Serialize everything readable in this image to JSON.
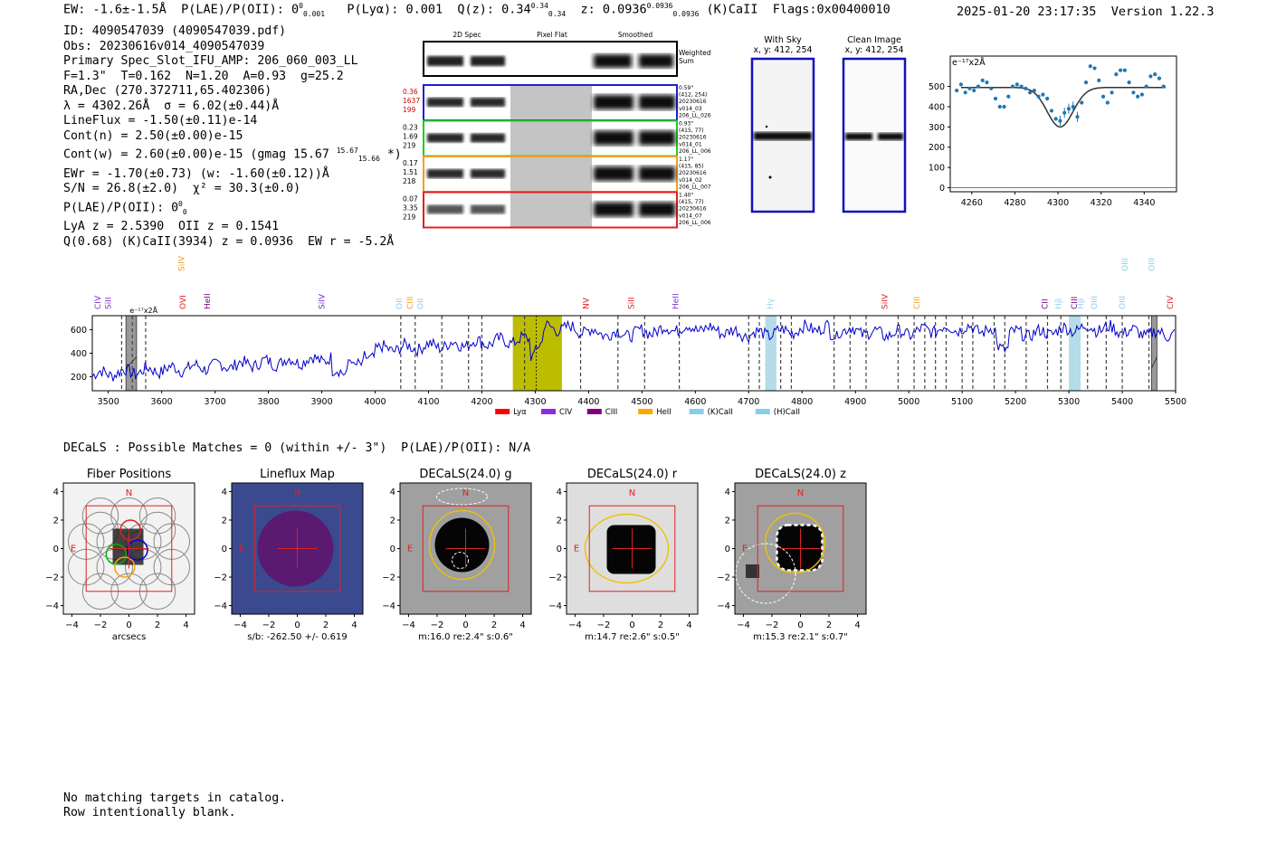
{
  "header": {
    "ew": "EW: -1.6±-1.5Å",
    "plae_label": "P(LAE)/P(OII): 0",
    "plae_sup": "0",
    "plae_sub": "0.001",
    "plya": "P(Lyα): 0.001",
    "qz_label": "Q(z): 0.34",
    "qz_sup": "0.34",
    "qz_sub": "0.34",
    "z_label": "z: 0.0936",
    "z_sup": "0.0936",
    "z_sub": "0.0936",
    "line_id": "(K)CaII",
    "flags": "Flags:0x00400010",
    "datetime": "2025-01-20 23:17:35",
    "version": "Version 1.22.3"
  },
  "info": {
    "id": "ID: 4090547039 (4090547039.pdf)",
    "obs": "Obs: 20230616v014_4090547039",
    "primary": "Primary Spec_Slot_IFU_AMP: 206_060_003_LL",
    "fit": "F=1.3\"  T=0.162  N=1.20  A=0.93  g=25.2",
    "radec": "RA,Dec (270.372711,65.402306)",
    "lambda": "λ = 4302.26Å  σ = 6.02(±0.44)Å",
    "lineflux": "LineFlux = -1.50(±0.11)e-14",
    "contn": "Cont(n) = 2.50(±0.00)e-15",
    "contw": "Cont(w) = 2.60(±0.00)e-15 (gmag 15.67",
    "gmag_sup": "15.67",
    "gmag_sub": "15.66",
    "contw_end": " *)",
    "ewr": "EWr = -1.70(±0.73) (w: -1.60(±0.12))Å",
    "sn": "S/N = 26.8(±2.0)  χ² = 30.3(±0.0)",
    "plae": "P(LAE)/P(OII): 0",
    "plae_sup": "0",
    "plae_sub": "0",
    "lya": "LyA z = 2.5390  OII z = 0.1541",
    "q": "Q(0.68) (K)CaII(3934) z = 0.0936  EW r = -5.2Å"
  },
  "cutouts": {
    "col_2d": "2D Spec",
    "col_flat": "Pixel Flat",
    "col_smooth": "Smoothed",
    "weighted": "Weighted",
    "sum": "Sum",
    "rows": [
      {
        "left": [
          "0.36",
          "1637",
          "199"
        ],
        "right": [
          "0.59\"",
          "(412, 254)",
          "20230616",
          "v014_03",
          "206_LL_026"
        ],
        "color": "#1f1fd0",
        "lcolor": "#d00000"
      },
      {
        "left": [
          "0.23",
          "1.69",
          "219"
        ],
        "right": [
          "0.93\"",
          "(415, 77)",
          "20230616",
          "v014_01",
          "206_LL_006"
        ],
        "color": "#22cc22",
        "lcolor": "#000000"
      },
      {
        "left": [
          "0.17",
          "1.51",
          "218"
        ],
        "right": [
          "1.17\"",
          "(415, 85)",
          "20230616",
          "v014_02",
          "206_LL_007"
        ],
        "color": "#f0a020",
        "lcolor": "#000000"
      },
      {
        "left": [
          "0.07",
          "3.35",
          "219"
        ],
        "right": [
          "1.40\"",
          "(415, 77)",
          "20230616",
          "v014_07",
          "206_LL_006"
        ],
        "color": "#e02020",
        "lcolor": "#000000"
      }
    ],
    "with_sky": "With Sky",
    "with_sky_xy": "x, y: 412, 254",
    "clean": "Clean Image",
    "clean_xy": "x, y: 412, 254"
  },
  "zoom_chart": {
    "type": "scatter",
    "ylabel": "e⁻¹⁷x2Å",
    "xlim": [
      4250,
      4355
    ],
    "ylim": [
      -20,
      650
    ],
    "xticks": [
      4260,
      4280,
      4300,
      4320,
      4340
    ],
    "yticks": [
      0,
      100,
      200,
      300,
      400,
      500
    ],
    "points_x": [
      4253,
      4255,
      4257,
      4259,
      4261,
      4263,
      4265,
      4267,
      4269,
      4271,
      4273,
      4275,
      4277,
      4279,
      4281,
      4283,
      4285,
      4287,
      4289,
      4291,
      4293,
      4295,
      4297,
      4299,
      4301,
      4303,
      4305,
      4307,
      4309,
      4311,
      4313,
      4315,
      4317,
      4319,
      4321,
      4323,
      4325,
      4327,
      4329,
      4331,
      4333,
      4335,
      4337,
      4339,
      4341,
      4343,
      4345,
      4347,
      4349
    ],
    "points_y": [
      480,
      510,
      470,
      490,
      480,
      500,
      530,
      520,
      490,
      440,
      400,
      400,
      450,
      500,
      510,
      500,
      490,
      470,
      480,
      450,
      460,
      440,
      380,
      340,
      330,
      370,
      390,
      400,
      350,
      420,
      520,
      600,
      590,
      530,
      450,
      420,
      470,
      560,
      580,
      580,
      520,
      470,
      450,
      460,
      500,
      550,
      560,
      540,
      500
    ],
    "model_center": 4301,
    "model_sigma": 6.02,
    "model_cont": 495,
    "model_depth": 195
  },
  "spectrum": {
    "ylabel": "e⁻¹⁷x2Å",
    "xlim": [
      3470,
      5500
    ],
    "ylim": [
      80,
      720
    ],
    "xticks": [
      3500,
      3600,
      3700,
      3800,
      3900,
      4000,
      4100,
      4200,
      4300,
      4400,
      4500,
      4600,
      4700,
      4800,
      4900,
      5000,
      5100,
      5200,
      5300,
      5400,
      5500
    ],
    "yticks": [
      200,
      400,
      600
    ],
    "highlight": [
      4258,
      4350
    ],
    "fitline": 4302,
    "blue_bands": [
      [
        4731,
        4752
      ],
      [
        5300,
        5322
      ]
    ],
    "gray_bands": [
      [
        3533,
        3553
      ],
      [
        5455,
        5465
      ]
    ],
    "dashed_lines": [
      3525,
      3545,
      3570,
      4048,
      4075,
      4125,
      4175,
      4200,
      4280,
      4385,
      4455,
      4505,
      4570,
      4700,
      4720,
      4760,
      4780,
      4860,
      4890,
      4920,
      4980,
      5010,
      5030,
      5050,
      5070,
      5100,
      5120,
      5160,
      5180,
      5220,
      5260,
      5285,
      5335,
      5370,
      5400,
      5450
    ],
    "line_labels": [
      {
        "x": 3480,
        "label": "CIV",
        "color": "#7a2fd6",
        "row": 0
      },
      {
        "x": 3500,
        "label": "SiII",
        "color": "#7a2fd6",
        "row": 0
      },
      {
        "x": 3637,
        "label": "SiIV",
        "color": "#f0a020",
        "row": 2
      },
      {
        "x": 3640,
        "label": "OVI",
        "color": "#e02020",
        "row": 0
      },
      {
        "x": 3685,
        "label": "HeII",
        "color": "#7a0080",
        "row": 0
      },
      {
        "x": 3900,
        "label": "SiIV",
        "color": "#7a2fd6",
        "row": 0
      },
      {
        "x": 4045,
        "label": "OII",
        "color": "#87ceeb",
        "row": 0
      },
      {
        "x": 4065,
        "label": "CIII",
        "color": "#f0a020",
        "row": 0
      },
      {
        "x": 4085,
        "label": "OII",
        "color": "#87ceeb",
        "row": 0
      },
      {
        "x": 4395,
        "label": "NV",
        "color": "#e02020",
        "row": 0
      },
      {
        "x": 4480,
        "label": "SiII",
        "color": "#e02020",
        "row": 0
      },
      {
        "x": 4563,
        "label": "HeII",
        "color": "#7a2fd6",
        "row": 0
      },
      {
        "x": 4740,
        "label": "Hγ",
        "color": "#87ceeb",
        "row": -1
      },
      {
        "x": 4955,
        "label": "SiIV",
        "color": "#e02020",
        "row": 0
      },
      {
        "x": 5015,
        "label": "CIII",
        "color": "#f0a020",
        "row": 0
      },
      {
        "x": 5255,
        "label": "CII",
        "color": "#7a0080",
        "row": 0
      },
      {
        "x": 5280,
        "label": "Hβ",
        "color": "#87ceeb",
        "row": -1
      },
      {
        "x": 5310,
        "label": "CIII",
        "color": "#7a0080",
        "row": 0
      },
      {
        "x": 5322,
        "label": "Hβ",
        "color": "#87ceeb",
        "row": -1
      },
      {
        "x": 5347,
        "label": "OIII",
        "color": "#87ceeb",
        "row": 0
      },
      {
        "x": 5400,
        "label": "OIII",
        "color": "#87ceeb",
        "row": 0
      },
      {
        "x": 5405,
        "label": "OIII",
        "color": "#87ceeb",
        "row": 2
      },
      {
        "x": 5455,
        "label": "OIII",
        "color": "#87ceeb",
        "row": 2
      },
      {
        "x": 5490,
        "label": "CIV",
        "color": "#e02020",
        "row": 0
      }
    ],
    "legend": [
      {
        "label": "Lyα",
        "color": "#ff0000"
      },
      {
        "label": "CIV",
        "color": "#8a2be2"
      },
      {
        "label": "CIII",
        "color": "#800080"
      },
      {
        "label": "HeII",
        "color": "#ffa500"
      },
      {
        "label": "(K)CaII",
        "color": "#87ceeb"
      },
      {
        "label": "(H)CaII",
        "color": "#87ceeb"
      }
    ]
  },
  "decals": {
    "summary": "DECaLS : Possible Matches = 0 (within +/- 3\")  P(LAE)/P(OII): N/A",
    "panels": [
      {
        "title": "Fiber Positions",
        "caption": "arcsecs"
      },
      {
        "title": "Lineflux Map",
        "caption": "s/b: -262.50 +/- 0.619"
      },
      {
        "title": "DECaLS(24.0) g",
        "caption": "m:16.0  re:2.4\"  s:0.6\""
      },
      {
        "title": "DECaLS(24.0) r",
        "caption": "m:14.7  re:2.6\"  s:0.5\""
      },
      {
        "title": "DECaLS(24.0) z",
        "caption": "m:15.3  re:2.1\"  s:0.7\""
      }
    ],
    "north": "N",
    "east": "E",
    "ticks": [
      -4,
      -2,
      0,
      2,
      4
    ]
  },
  "notes": {
    "line1": "No matching targets in catalog.",
    "line2": "Row intentionally blank."
  }
}
